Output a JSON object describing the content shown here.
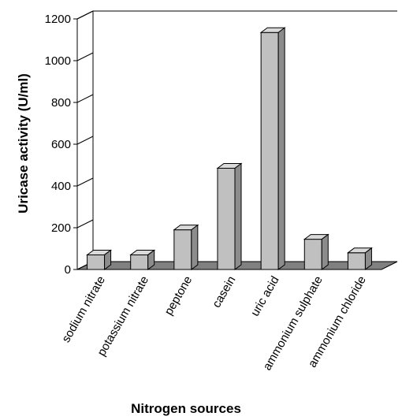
{
  "chart_data": {
    "type": "bar",
    "title": "",
    "xlabel": "Nitrogen sources",
    "ylabel": "Uricase activity (U/ml)",
    "ylim": [
      0,
      1200
    ],
    "yticks": [
      "0",
      "200",
      "400",
      "600",
      "800",
      "1000",
      "1200"
    ],
    "grid": false,
    "style": "3d",
    "categories": [
      "sodium nitrate",
      "potassium nitrate",
      "peptone",
      "casein",
      "uric acid",
      "ammonium sulphate",
      "ammonium chloride"
    ],
    "values": [
      70,
      70,
      190,
      485,
      1135,
      145,
      80
    ],
    "colors": {
      "bar_front": "#c0c0c0",
      "bar_top": "#d9d9d9",
      "bar_side": "#8c8c8c",
      "floor": "#808080",
      "axis": "#000000"
    }
  }
}
